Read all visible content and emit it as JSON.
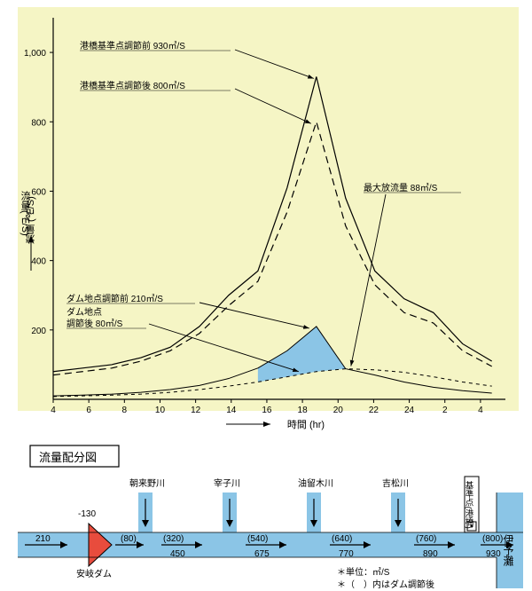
{
  "chart": {
    "type": "line",
    "background_color": "#f5f5c5",
    "axis_color": "#000000",
    "grid_color": "#000000",
    "text_color": "#000000",
    "fill_color": "#8bc5e6",
    "axis_fontsize": 10,
    "label_fontsize": 11,
    "annot_fontsize": 10,
    "x_label": "時間 (hr)",
    "y_label": "流量 (㎥/S)",
    "x_ticks": [
      4,
      6,
      8,
      10,
      12,
      14,
      16,
      18,
      20,
      22,
      24,
      2,
      4
    ],
    "y_ticks": [
      200,
      400,
      600,
      800,
      1000
    ],
    "ylim": [
      0,
      1100
    ],
    "annotations": {
      "a1": "港橋基準点調節前 930㎥/S",
      "a2": "港橋基準点調節後 800㎥/S",
      "a3": "最大放流量 88㎥/S",
      "a4": "ダム地点調節前 210㎥/S",
      "a5": "ダム地点",
      "a6": "調節後 80㎥/S"
    },
    "series": {
      "before_ref": {
        "stroke": "#000000",
        "dash": "",
        "width": 1.2,
        "y": [
          80,
          90,
          100,
          120,
          150,
          210,
          300,
          370,
          610,
          930,
          580,
          370,
          290,
          250,
          160,
          110
        ]
      },
      "after_ref": {
        "stroke": "#000000",
        "dash": "8 5",
        "width": 1.2,
        "y": [
          70,
          80,
          90,
          110,
          140,
          190,
          270,
          340,
          540,
          800,
          500,
          330,
          250,
          220,
          140,
          95
        ]
      },
      "dam_before": {
        "stroke": "#000000",
        "dash": "",
        "width": 1.0,
        "y": [
          10,
          12,
          15,
          20,
          28,
          40,
          60,
          90,
          140,
          210,
          88,
          70,
          50,
          35,
          25,
          18
        ]
      },
      "dam_after": {
        "stroke": "#000000",
        "dash": "4 4",
        "width": 1.0,
        "y": [
          8,
          10,
          12,
          15,
          20,
          28,
          38,
          50,
          65,
          80,
          88,
          85,
          78,
          65,
          50,
          38
        ]
      }
    },
    "fill_between": [
      "dam_before",
      "dam_after",
      7,
      10
    ]
  },
  "dist": {
    "title": "流量配分図",
    "river_color": "#8bc5e6",
    "dam_color": "#e84c3d",
    "line_color": "#000000",
    "text_color": "#000000",
    "fontsize": 10,
    "dam": {
      "name": "安岐ダム",
      "in": "210",
      "reduce": "-130"
    },
    "tributaries": [
      {
        "name": "朝来野川",
        "after": "(80)",
        "before": "450",
        "mid": "(320)"
      },
      {
        "name": "宰子川",
        "after": "",
        "before": "675",
        "mid": "(540)"
      },
      {
        "name": "油留木川",
        "after": "",
        "before": "770",
        "mid": "(640)"
      },
      {
        "name": "吉松川",
        "after": "",
        "before": "890",
        "mid": "(760)"
      }
    ],
    "ref_point": "基準点(港橋)",
    "outlet": "伊予灘",
    "final": {
      "after": "(800)",
      "before": "930"
    },
    "note1": "＊単位：㎥/S",
    "note2": "＊（　）内はダム調節後"
  }
}
